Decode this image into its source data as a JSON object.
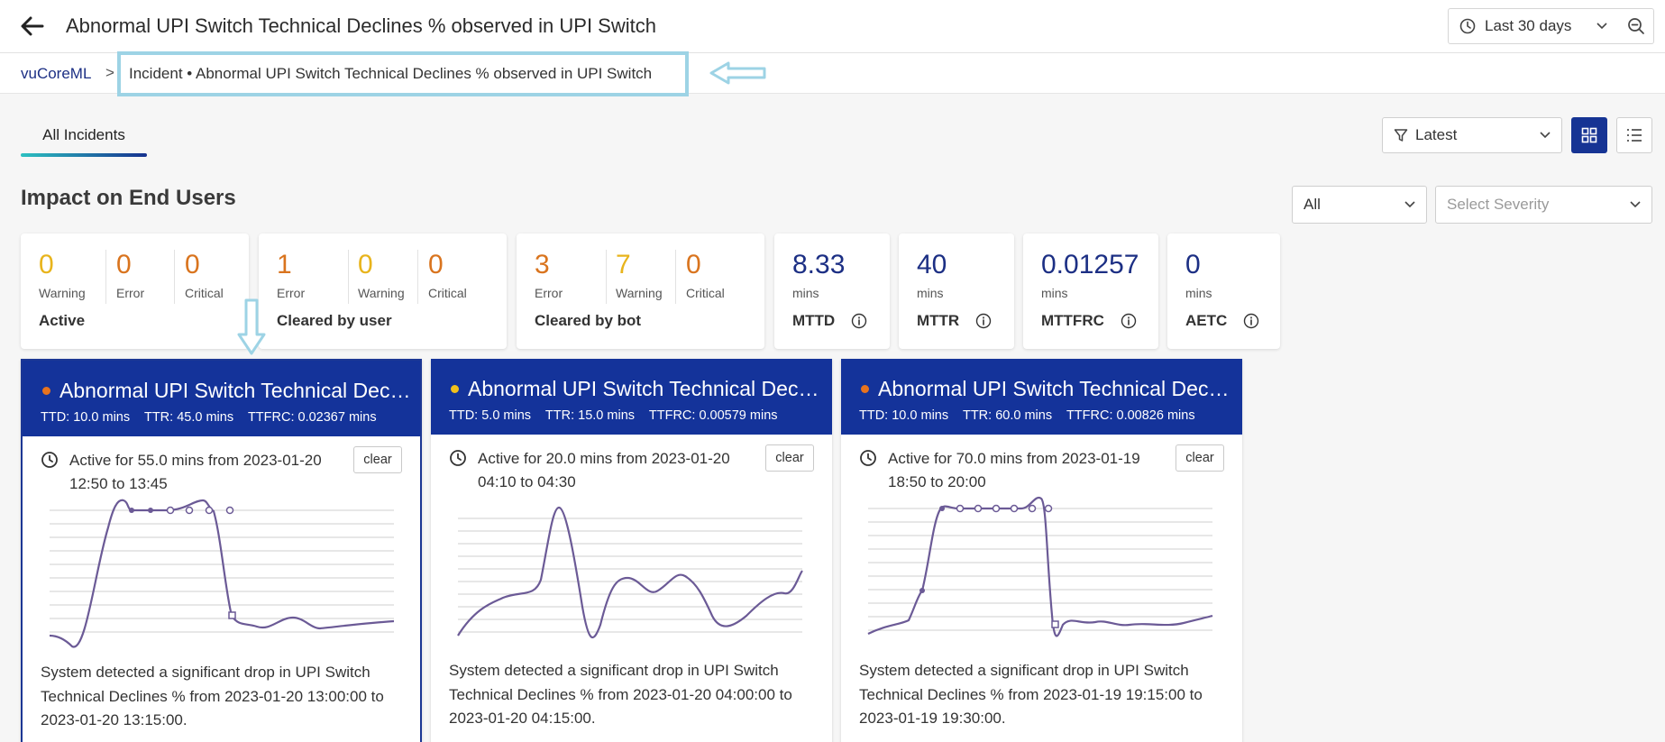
{
  "header": {
    "title": "Abnormal UPI Switch Technical Declines % observed in UPI Switch",
    "time_range": "Last 30 days"
  },
  "breadcrumb": {
    "root": "vuCoreML",
    "separator": ">",
    "current": "Incident • Abnormal UPI Switch Technical Declines % observed in UPI Switch"
  },
  "tabs": {
    "all_incidents": "All Incidents"
  },
  "filters": {
    "sort": "Latest",
    "scope": "All",
    "severity_placeholder": "Select Severity"
  },
  "section_title": "Impact on End Users",
  "stats": {
    "active": {
      "label": "Active",
      "items": [
        {
          "value": "0",
          "label": "Warning"
        },
        {
          "value": "0",
          "label": "Error"
        },
        {
          "value": "0",
          "label": "Critical"
        }
      ]
    },
    "cleared_user": {
      "label": "Cleared by user",
      "items": [
        {
          "value": "1",
          "label": "Error"
        },
        {
          "value": "0",
          "label": "Warning"
        },
        {
          "value": "0",
          "label": "Critical"
        }
      ]
    },
    "cleared_bot": {
      "label": "Cleared by bot",
      "items": [
        {
          "value": "3",
          "label": "Error"
        },
        {
          "value": "7",
          "label": "Warning"
        },
        {
          "value": "0",
          "label": "Critical"
        }
      ]
    },
    "metrics": [
      {
        "value": "8.33",
        "unit": "mins",
        "label": "MTTD"
      },
      {
        "value": "40",
        "unit": "mins",
        "label": "MTTR"
      },
      {
        "value": "0.01257",
        "unit": "mins",
        "label": "MTTFRC"
      },
      {
        "value": "0",
        "unit": "mins",
        "label": "AETC"
      }
    ]
  },
  "colors": {
    "accent": "#14339a",
    "warning": "#e8b41c",
    "error": "#d9741e"
  },
  "incidents": [
    {
      "title": "Abnormal UPI Switch Technical Declines % observed in UPI Switch",
      "dot_color": "#e8731e",
      "ttd": "TTD: 10.0 mins",
      "ttr": "TTR: 45.0 mins",
      "ttfrc": "TTFRC: 0.02367 mins",
      "active": "Active for 55.0 mins from 2023-01-20 12:50 to 13:45",
      "clear": "clear",
      "description": "System detected a significant drop in UPI Switch Technical Declines % from 2023-01-20 13:00:00 to 2023-01-20 13:15:00."
    },
    {
      "title": "Abnormal UPI Switch Technical Declines % observed in UPI Switch",
      "dot_color": "#f2c11c",
      "ttd": "TTD: 5.0 mins",
      "ttr": "TTR: 15.0 mins",
      "ttfrc": "TTFRC: 0.00579 mins",
      "active": "Active for 20.0 mins from 2023-01-20 04:10 to 04:30",
      "clear": "clear",
      "description": "System detected a significant drop in UPI Switch Technical Declines % from 2023-01-20 04:00:00 to 2023-01-20 04:15:00."
    },
    {
      "title": "Abnormal UPI Switch Technical Declines % observed in UPI Switch",
      "dot_color": "#e8731e",
      "ttd": "TTD: 10.0 mins",
      "ttr": "TTR: 60.0 mins",
      "ttfrc": "TTFRC: 0.00826 mins",
      "active": "Active for 70.0 mins from 2023-01-19 18:50 to 20:00",
      "clear": "clear",
      "description": "System detected a significant drop in UPI Switch Technical Declines % from 2023-01-19 19:15:00 to 2023-01-19 19:30:00."
    }
  ]
}
